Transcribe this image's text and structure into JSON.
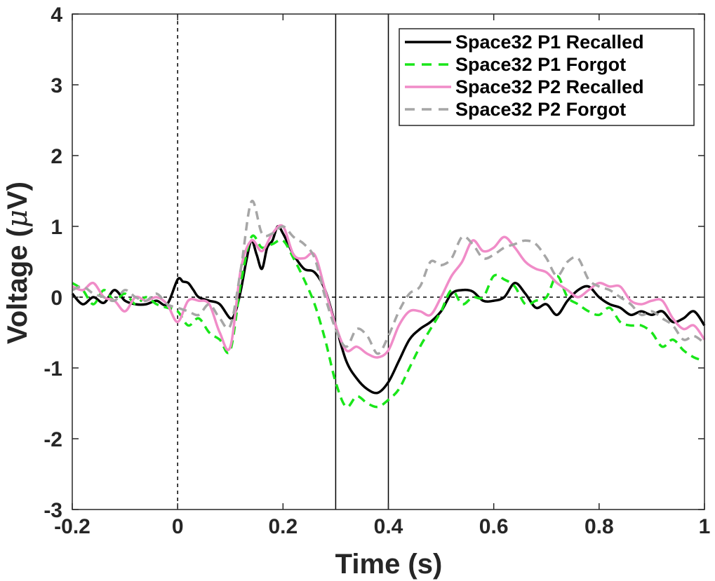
{
  "chart_data": {
    "type": "line",
    "title": "",
    "xlabel": "Time (s)",
    "ylabel_prefix": "Voltage (",
    "ylabel_symbol": "μ",
    "ylabel_suffix": "V)",
    "xlim": [
      -0.2,
      1.0
    ],
    "ylim": [
      -3,
      4
    ],
    "xticks": [
      -0.2,
      0,
      0.2,
      0.4,
      0.6,
      0.8,
      1.0
    ],
    "xtick_labels": [
      "-0.2",
      "0",
      "0.2",
      "0.4",
      "0.6",
      "0.8",
      "1"
    ],
    "yticks": [
      -3,
      -2,
      -1,
      0,
      1,
      2,
      3,
      4
    ],
    "ytick_labels": [
      "-3",
      "-2",
      "-1",
      "0",
      "1",
      "2",
      "3",
      "4"
    ],
    "grid": false,
    "legend_position": "top-right",
    "reference_lines": {
      "zero_time_dashed": 0,
      "zero_voltage_dashed": 0,
      "window_solid": [
        0.3,
        0.4
      ]
    },
    "series": [
      {
        "name": "Space32 P1 Recalled",
        "color": "#000000",
        "style": "solid",
        "x": [
          -0.2,
          -0.18,
          -0.16,
          -0.14,
          -0.12,
          -0.1,
          -0.08,
          -0.06,
          -0.04,
          -0.02,
          0,
          0.01,
          0.02,
          0.03,
          0.04,
          0.06,
          0.08,
          0.1,
          0.11,
          0.12,
          0.13,
          0.14,
          0.15,
          0.16,
          0.17,
          0.18,
          0.19,
          0.2,
          0.21,
          0.22,
          0.24,
          0.26,
          0.28,
          0.3,
          0.32,
          0.34,
          0.36,
          0.38,
          0.4,
          0.42,
          0.44,
          0.46,
          0.48,
          0.5,
          0.52,
          0.54,
          0.56,
          0.58,
          0.6,
          0.62,
          0.64,
          0.66,
          0.68,
          0.7,
          0.72,
          0.74,
          0.76,
          0.78,
          0.8,
          0.82,
          0.84,
          0.86,
          0.88,
          0.9,
          0.92,
          0.94,
          0.96,
          0.98,
          1.0
        ],
        "values": [
          0.05,
          -0.1,
          0.0,
          -0.08,
          0.1,
          -0.05,
          -0.1,
          -0.1,
          -0.05,
          -0.1,
          0.25,
          0.22,
          0.2,
          0.1,
          0.0,
          -0.05,
          -0.1,
          -0.3,
          -0.2,
          0.1,
          0.5,
          0.8,
          0.6,
          0.4,
          0.7,
          0.8,
          1.0,
          0.9,
          0.75,
          0.6,
          0.4,
          0.35,
          0.1,
          -0.4,
          -0.9,
          -1.15,
          -1.3,
          -1.35,
          -1.2,
          -0.9,
          -0.6,
          -0.45,
          -0.35,
          -0.2,
          0.05,
          0.1,
          0.08,
          -0.05,
          -0.05,
          0.0,
          0.2,
          0.05,
          -0.15,
          -0.1,
          -0.25,
          -0.05,
          0.1,
          0.15,
          0.0,
          -0.1,
          -0.15,
          -0.25,
          -0.2,
          -0.25,
          -0.2,
          -0.35,
          -0.3,
          -0.2,
          -0.4
        ]
      },
      {
        "name": "Space32 P1 Forgot",
        "color": "#19e619",
        "style": "dashed",
        "x": [
          -0.2,
          -0.18,
          -0.16,
          -0.14,
          -0.12,
          -0.1,
          -0.08,
          -0.06,
          -0.04,
          -0.02,
          0,
          0.02,
          0.04,
          0.06,
          0.08,
          0.1,
          0.12,
          0.14,
          0.16,
          0.18,
          0.2,
          0.22,
          0.24,
          0.26,
          0.28,
          0.3,
          0.32,
          0.34,
          0.36,
          0.38,
          0.4,
          0.42,
          0.44,
          0.46,
          0.48,
          0.5,
          0.52,
          0.54,
          0.56,
          0.58,
          0.6,
          0.62,
          0.64,
          0.66,
          0.68,
          0.7,
          0.72,
          0.74,
          0.76,
          0.78,
          0.8,
          0.82,
          0.84,
          0.86,
          0.88,
          0.9,
          0.92,
          0.94,
          0.96,
          0.98,
          1.0
        ],
        "values": [
          0.2,
          0.1,
          -0.1,
          0.1,
          -0.05,
          0.05,
          -0.1,
          0.0,
          -0.1,
          -0.15,
          -0.2,
          -0.4,
          -0.3,
          -0.5,
          -0.6,
          -0.75,
          0.2,
          0.85,
          0.7,
          0.75,
          0.8,
          0.55,
          0.25,
          -0.1,
          -0.6,
          -1.2,
          -1.55,
          -1.4,
          -1.5,
          -1.55,
          -1.45,
          -1.3,
          -1.0,
          -0.7,
          -0.45,
          -0.2,
          0.1,
          -0.1,
          0.0,
          0.0,
          0.3,
          0.25,
          0.15,
          -0.1,
          -0.05,
          0.0,
          0.3,
          0.0,
          -0.1,
          -0.2,
          -0.25,
          -0.15,
          -0.35,
          -0.4,
          -0.4,
          -0.5,
          -0.7,
          -0.6,
          -0.75,
          -0.85,
          -0.9
        ]
      },
      {
        "name": "Space32 P2 Recalled",
        "color": "#f08cc8",
        "style": "solid",
        "x": [
          -0.2,
          -0.18,
          -0.16,
          -0.14,
          -0.12,
          -0.1,
          -0.08,
          -0.06,
          -0.04,
          -0.02,
          0,
          0.02,
          0.04,
          0.06,
          0.08,
          0.1,
          0.12,
          0.14,
          0.16,
          0.18,
          0.2,
          0.22,
          0.24,
          0.26,
          0.28,
          0.3,
          0.32,
          0.34,
          0.36,
          0.38,
          0.4,
          0.42,
          0.44,
          0.46,
          0.48,
          0.5,
          0.52,
          0.54,
          0.56,
          0.58,
          0.6,
          0.62,
          0.64,
          0.66,
          0.68,
          0.7,
          0.72,
          0.74,
          0.76,
          0.78,
          0.8,
          0.82,
          0.84,
          0.86,
          0.88,
          0.9,
          0.92,
          0.94,
          0.96,
          0.98,
          1.0
        ],
        "values": [
          0.15,
          0.1,
          0.2,
          0.0,
          -0.05,
          -0.2,
          0.0,
          -0.05,
          0.0,
          -0.1,
          -0.35,
          -0.05,
          -0.05,
          -0.1,
          -0.5,
          -0.7,
          0.4,
          0.8,
          0.65,
          0.9,
          1.0,
          0.6,
          0.55,
          0.6,
          0.1,
          -0.4,
          -0.75,
          -0.7,
          -0.8,
          -0.85,
          -0.75,
          -0.4,
          -0.2,
          -0.2,
          -0.25,
          0.0,
          0.3,
          0.5,
          0.8,
          0.65,
          0.7,
          0.85,
          0.7,
          0.5,
          0.4,
          0.35,
          0.2,
          0.1,
          0.0,
          0.1,
          0.2,
          0.15,
          0.15,
          -0.05,
          -0.1,
          -0.05,
          -0.05,
          -0.3,
          -0.45,
          -0.4,
          -0.6
        ]
      },
      {
        "name": "Space32 P2 Forgot",
        "color": "#a6a6a6",
        "style": "dashed",
        "x": [
          -0.2,
          -0.18,
          -0.16,
          -0.14,
          -0.12,
          -0.1,
          -0.08,
          -0.06,
          -0.04,
          -0.02,
          0,
          0.02,
          0.04,
          0.06,
          0.08,
          0.1,
          0.12,
          0.14,
          0.16,
          0.18,
          0.2,
          0.22,
          0.24,
          0.26,
          0.28,
          0.3,
          0.32,
          0.34,
          0.36,
          0.38,
          0.4,
          0.42,
          0.44,
          0.46,
          0.48,
          0.5,
          0.52,
          0.54,
          0.56,
          0.58,
          0.6,
          0.62,
          0.64,
          0.66,
          0.68,
          0.7,
          0.72,
          0.74,
          0.76,
          0.78,
          0.8,
          0.82,
          0.84,
          0.86,
          0.88,
          0.9,
          0.92,
          0.94,
          0.96,
          0.98,
          1.0
        ],
        "values": [
          0.1,
          0.15,
          0.05,
          0.0,
          -0.05,
          0.1,
          0.0,
          -0.05,
          0.05,
          -0.1,
          -0.15,
          -0.2,
          -0.25,
          -0.1,
          -0.3,
          -0.4,
          0.4,
          1.35,
          0.9,
          0.9,
          1.0,
          0.85,
          0.75,
          0.55,
          0.0,
          -0.45,
          -0.7,
          -0.45,
          -0.55,
          -0.8,
          -0.55,
          -0.2,
          0.05,
          0.15,
          0.5,
          0.45,
          0.55,
          0.85,
          0.75,
          0.55,
          0.6,
          0.7,
          0.75,
          0.8,
          0.75,
          0.55,
          0.3,
          0.5,
          0.55,
          0.25,
          0.15,
          0.1,
          0.0,
          -0.1,
          -0.25,
          -0.2,
          -0.3,
          -0.4,
          -0.6,
          -0.55,
          -0.65
        ]
      }
    ]
  }
}
